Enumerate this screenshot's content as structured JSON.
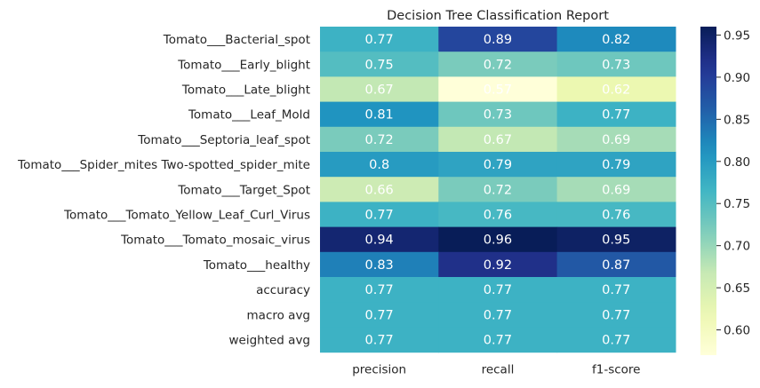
{
  "chart_data": {
    "type": "heatmap",
    "title": "Decision Tree Classification Report",
    "rows": [
      "Tomato___Bacterial_spot",
      "Tomato___Early_blight",
      "Tomato___Late_blight",
      "Tomato___Leaf_Mold",
      "Tomato___Septoria_leaf_spot",
      "Tomato___Spider_mites Two-spotted_spider_mite",
      "Tomato___Target_Spot",
      "Tomato___Tomato_Yellow_Leaf_Curl_Virus",
      "Tomato___Tomato_mosaic_virus",
      "Tomato___healthy",
      "accuracy",
      "macro avg",
      "weighted avg"
    ],
    "columns": [
      "precision",
      "recall",
      "f1-score"
    ],
    "values": [
      [
        0.77,
        0.89,
        0.82
      ],
      [
        0.75,
        0.72,
        0.73
      ],
      [
        0.67,
        0.57,
        0.62
      ],
      [
        0.81,
        0.73,
        0.77
      ],
      [
        0.72,
        0.67,
        0.69
      ],
      [
        0.8,
        0.79,
        0.79
      ],
      [
        0.66,
        0.72,
        0.69
      ],
      [
        0.77,
        0.76,
        0.76
      ],
      [
        0.94,
        0.96,
        0.95
      ],
      [
        0.83,
        0.92,
        0.87
      ],
      [
        0.77,
        0.77,
        0.77
      ],
      [
        0.77,
        0.77,
        0.77
      ],
      [
        0.77,
        0.77,
        0.77
      ]
    ],
    "value_labels": [
      [
        "0.77",
        "0.89",
        "0.82"
      ],
      [
        "0.75",
        "0.72",
        "0.73"
      ],
      [
        "0.67",
        "0.57",
        "0.62"
      ],
      [
        "0.81",
        "0.73",
        "0.77"
      ],
      [
        "0.72",
        "0.67",
        "0.69"
      ],
      [
        "0.8",
        "0.79",
        "0.79"
      ],
      [
        "0.66",
        "0.72",
        "0.69"
      ],
      [
        "0.77",
        "0.76",
        "0.76"
      ],
      [
        "0.94",
        "0.96",
        "0.95"
      ],
      [
        "0.83",
        "0.92",
        "0.87"
      ],
      [
        "0.77",
        "0.77",
        "0.77"
      ],
      [
        "0.77",
        "0.77",
        "0.77"
      ],
      [
        "0.77",
        "0.77",
        "0.77"
      ]
    ],
    "colormap": "YlGnBu",
    "vmin": 0.57,
    "vmax": 0.96,
    "colorbar": {
      "ticks": [
        0.6,
        0.65,
        0.7,
        0.75,
        0.8,
        0.85,
        0.9,
        0.95
      ],
      "tick_labels": [
        "0.60",
        "0.65",
        "0.70",
        "0.75",
        "0.80",
        "0.85",
        "0.90",
        "0.95"
      ],
      "placement": "right"
    },
    "annotation_color": "#ffffff"
  }
}
